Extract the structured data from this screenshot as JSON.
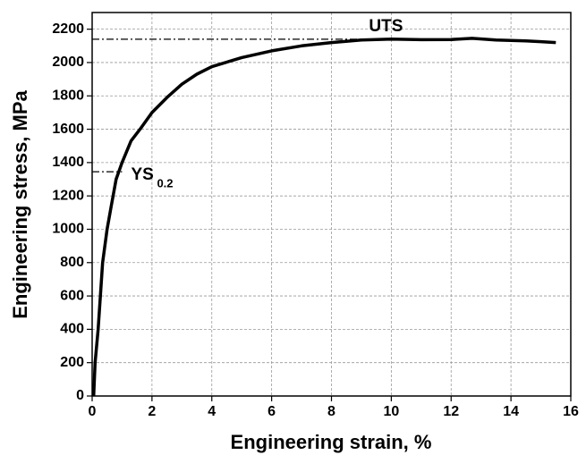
{
  "chart_data": {
    "type": "line",
    "x_label": "Engineering strain, %",
    "y_label": "Engineering stress, MPa",
    "x": [
      0.05,
      0.1,
      0.2,
      0.35,
      0.5,
      0.65,
      0.8,
      1.0,
      1.3,
      1.6,
      2,
      2.5,
      3,
      3.5,
      4,
      5,
      6,
      7,
      8,
      9,
      10,
      11,
      12,
      12.7,
      13.5,
      14.5,
      15,
      15.5
    ],
    "values": [
      0,
      200,
      400,
      800,
      1000,
      1150,
      1300,
      1400,
      1530,
      1600,
      1700,
      1790,
      1870,
      1930,
      1975,
      2030,
      2070,
      2100,
      2120,
      2135,
      2140,
      2137,
      2138,
      2145,
      2135,
      2130,
      2125,
      2120
    ],
    "color": "#000000",
    "xlim": [
      0,
      16
    ],
    "xticks": [
      0,
      2,
      4,
      6,
      8,
      10,
      12,
      14,
      16
    ],
    "ylim": [
      0,
      2300
    ],
    "yticks": [
      0,
      200,
      400,
      600,
      800,
      1000,
      1200,
      1400,
      1600,
      1800,
      2000,
      2200
    ],
    "grid": true,
    "uts": {
      "label": "UTS",
      "value": 2140
    },
    "ys": {
      "label": "YS",
      "subscript": "0.2",
      "value": 1345
    }
  }
}
